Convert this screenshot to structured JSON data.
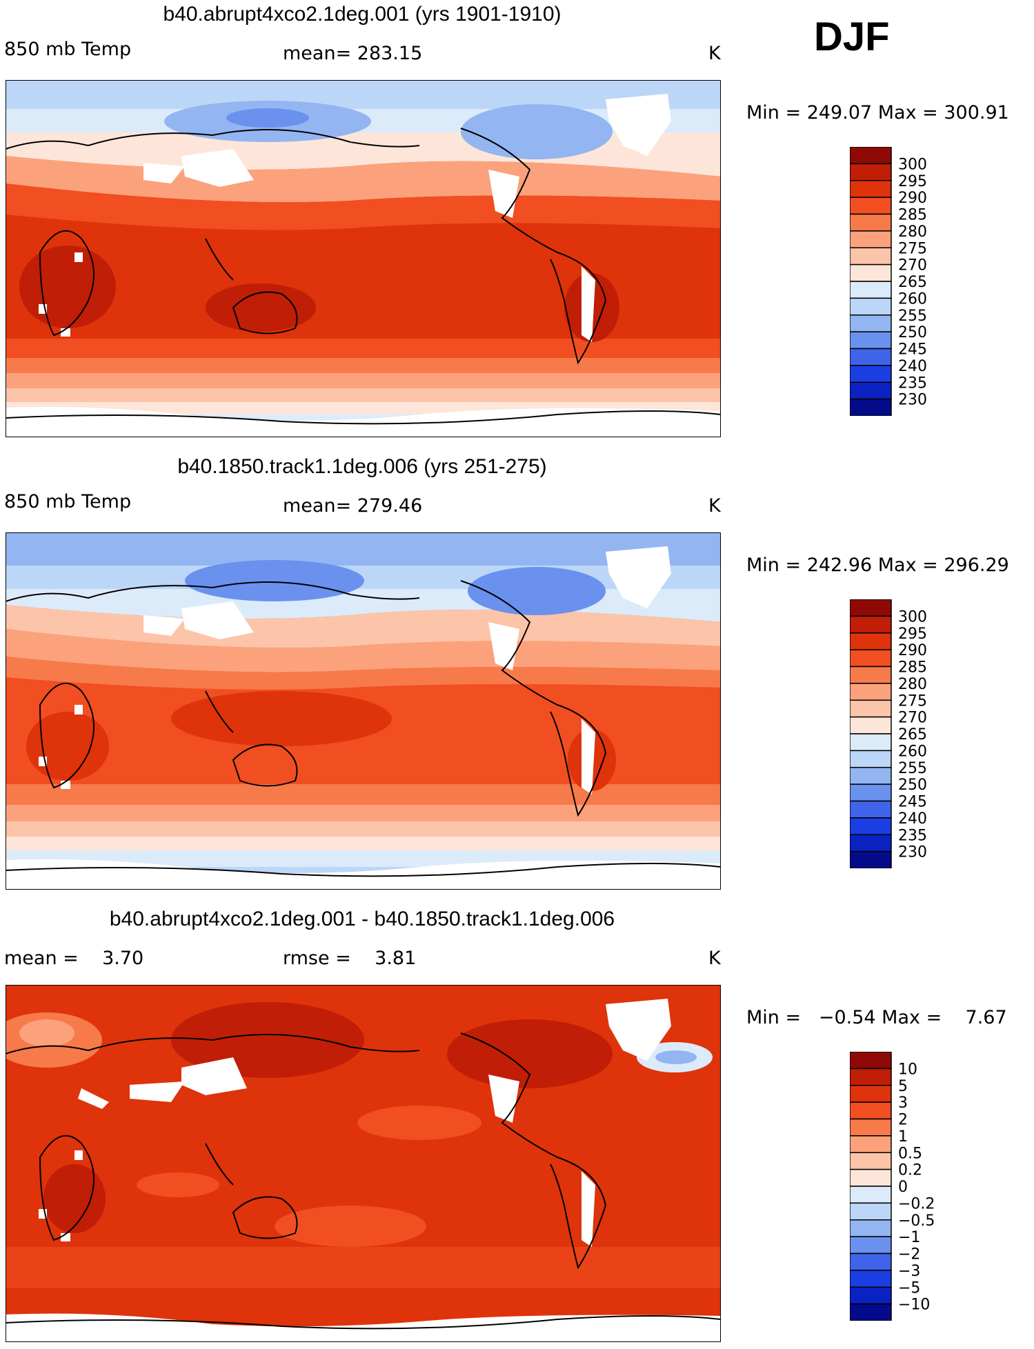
{
  "season": "DJF",
  "colors": {
    "warm": [
      "#fde6d9",
      "#fcc4a8",
      "#fba27c",
      "#f77a4b",
      "#f14e22",
      "#df330b",
      "#c01e06",
      "#8f0a06"
    ],
    "cool": [
      "#dcebfa",
      "#bcd6f7",
      "#93b5f2",
      "#6b91ee",
      "#3f64ea",
      "#1b3ee3",
      "#0b22c3",
      "#040b8a"
    ],
    "land_white": "#ffffff",
    "coast": "#000000"
  },
  "panels": [
    {
      "title": "b40.abrupt4xco2.1deg.001 (yrs 1901-1910)",
      "left_label": "850 mb Temp",
      "center_label": "mean= 283.15",
      "units": "K",
      "minmax": "Min = 249.07 Max = 300.91",
      "colorbar": [
        "300",
        "295",
        "290",
        "285",
        "280",
        "275",
        "270",
        "265",
        "260",
        "255",
        "250",
        "245",
        "240",
        "235",
        "230"
      ],
      "colorbar_colors": [
        "#8f0a06",
        "#c01e06",
        "#df330b",
        "#f14e22",
        "#f77a4b",
        "#fba27c",
        "#fcc4a8",
        "#fde6d9",
        "#dcebfa",
        "#bcd6f7",
        "#93b5f2",
        "#6b91ee",
        "#3f64ea",
        "#1b3ee3",
        "#0b22c3",
        "#040b8a"
      ]
    },
    {
      "title": "b40.1850.track1.1deg.006 (yrs 251-275)",
      "left_label": "850 mb Temp",
      "center_label": "mean= 279.46",
      "units": "K",
      "minmax": "Min = 242.96 Max = 296.29",
      "colorbar": [
        "300",
        "295",
        "290",
        "285",
        "280",
        "275",
        "270",
        "265",
        "260",
        "255",
        "250",
        "245",
        "240",
        "235",
        "230"
      ],
      "colorbar_colors": [
        "#8f0a06",
        "#c01e06",
        "#df330b",
        "#f14e22",
        "#f77a4b",
        "#fba27c",
        "#fcc4a8",
        "#fde6d9",
        "#dcebfa",
        "#bcd6f7",
        "#93b5f2",
        "#6b91ee",
        "#3f64ea",
        "#1b3ee3",
        "#0b22c3",
        "#040b8a"
      ]
    },
    {
      "title": "b40.abrupt4xco2.1deg.001 - b40.1850.track1.1deg.006",
      "left_label": "mean =    3.70",
      "center_label": "rmse =    3.81",
      "units": "K",
      "minmax": "Min =   −0.54 Max =    7.67",
      "colorbar": [
        "10",
        "5",
        "3",
        "2",
        "1",
        "0.5",
        "0.2",
        "0",
        "−0.2",
        "−0.5",
        "−1",
        "−2",
        "−3",
        "−5",
        "−10"
      ],
      "colorbar_colors": [
        "#8f0a06",
        "#c01e06",
        "#df330b",
        "#f14e22",
        "#f77a4b",
        "#fba27c",
        "#fcc4a8",
        "#fde6d9",
        "#dcebfa",
        "#bcd6f7",
        "#93b5f2",
        "#6b91ee",
        "#3f64ea",
        "#1b3ee3",
        "#0b22c3",
        "#040b8a"
      ]
    }
  ]
}
